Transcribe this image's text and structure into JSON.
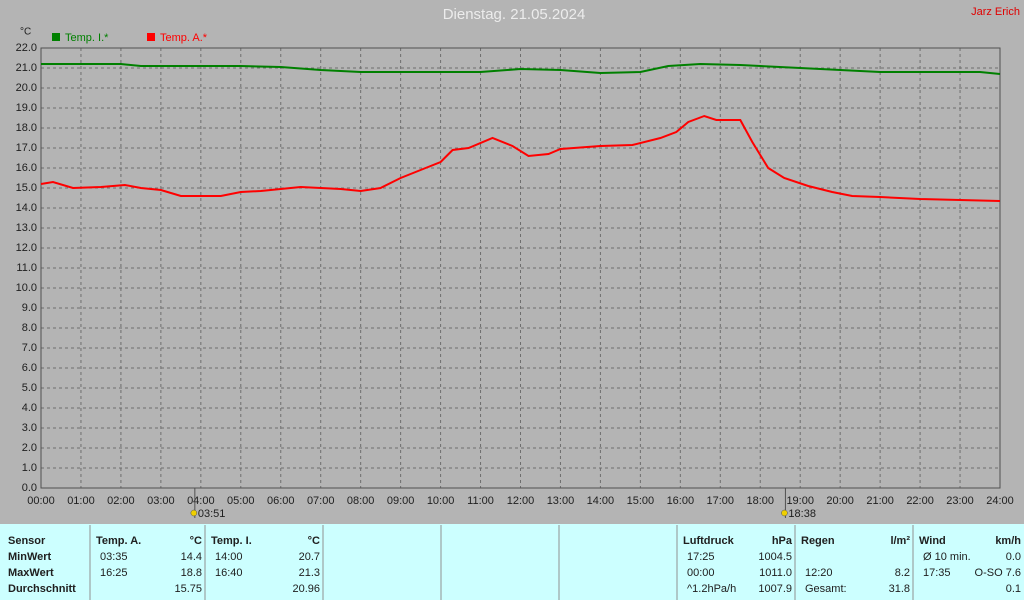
{
  "chart_data": {
    "type": "line",
    "title": "Dienstag. 21.05.2024",
    "author": "Jarz Erich",
    "y_unit": "°C",
    "grid": true,
    "xlim": [
      0,
      24
    ],
    "xticks": [
      {
        "value": 0,
        "label": "00:00"
      },
      {
        "value": 1,
        "label": "01:00"
      },
      {
        "value": 2,
        "label": "02:00"
      },
      {
        "value": 3,
        "label": "03:00"
      },
      {
        "value": 4,
        "label": "04:00"
      },
      {
        "value": 5,
        "label": "05:00"
      },
      {
        "value": 6,
        "label": "06:00"
      },
      {
        "value": 7,
        "label": "07:00"
      },
      {
        "value": 8,
        "label": "08:00"
      },
      {
        "value": 9,
        "label": "09:00"
      },
      {
        "value": 10,
        "label": "10:00"
      },
      {
        "value": 11,
        "label": "11:00"
      },
      {
        "value": 12,
        "label": "12:00"
      },
      {
        "value": 13,
        "label": "13:00"
      },
      {
        "value": 14,
        "label": "14:00"
      },
      {
        "value": 15,
        "label": "15:00"
      },
      {
        "value": 16,
        "label": "16:00"
      },
      {
        "value": 17,
        "label": "17:00"
      },
      {
        "value": 18,
        "label": "18:00"
      },
      {
        "value": 19,
        "label": "19:00"
      },
      {
        "value": 20,
        "label": "20:00"
      },
      {
        "value": 21,
        "label": "21:00"
      },
      {
        "value": 22,
        "label": "22:00"
      },
      {
        "value": 23,
        "label": "23:00"
      },
      {
        "value": 24,
        "label": "24:00"
      }
    ],
    "ylim": [
      0,
      22
    ],
    "yticks": [
      {
        "value": 0,
        "label": "0.0"
      },
      {
        "value": 1,
        "label": "1.0"
      },
      {
        "value": 2,
        "label": "2.0"
      },
      {
        "value": 3,
        "label": "3.0"
      },
      {
        "value": 4,
        "label": "4.0"
      },
      {
        "value": 5,
        "label": "5.0"
      },
      {
        "value": 6,
        "label": "6.0"
      },
      {
        "value": 7,
        "label": "7.0"
      },
      {
        "value": 8,
        "label": "8.0"
      },
      {
        "value": 9,
        "label": "9.0"
      },
      {
        "value": 10,
        "label": "10.0"
      },
      {
        "value": 11,
        "label": "11.0"
      },
      {
        "value": 12,
        "label": "12.0"
      },
      {
        "value": 13,
        "label": "13.0"
      },
      {
        "value": 14,
        "label": "14.0"
      },
      {
        "value": 15,
        "label": "15.0"
      },
      {
        "value": 16,
        "label": "16.0"
      },
      {
        "value": 17,
        "label": "17.0"
      },
      {
        "value": 18,
        "label": "18.0"
      },
      {
        "value": 19,
        "label": "19.0"
      },
      {
        "value": 20,
        "label": "20.0"
      },
      {
        "value": 21,
        "label": "21.0"
      },
      {
        "value": 22,
        "label": "22.0"
      }
    ],
    "series": [
      {
        "name": "Temp. I.*",
        "color": "#008000",
        "x": [
          0,
          2,
          2.5,
          5,
          6,
          7,
          8,
          11,
          12,
          13,
          14,
          15,
          15.7,
          16.5,
          17.5,
          19,
          20,
          21,
          23.5,
          24
        ],
        "values": [
          21.2,
          21.2,
          21.1,
          21.1,
          21.05,
          20.9,
          20.8,
          20.8,
          20.95,
          20.9,
          20.75,
          20.8,
          21.1,
          21.2,
          21.15,
          21.0,
          20.9,
          20.8,
          20.8,
          20.7
        ]
      },
      {
        "name": "Temp. A.*",
        "color": "#ff0000",
        "x": [
          0,
          0.3,
          0.8,
          1.5,
          2.1,
          2.5,
          3,
          3.5,
          4.5,
          5,
          5.5,
          6.5,
          7.5,
          8,
          8.5,
          9,
          9.5,
          10,
          10.3,
          10.7,
          11.3,
          11.8,
          12.2,
          12.7,
          13,
          14,
          14.8,
          15.5,
          15.9,
          16.2,
          16.6,
          16.9,
          17.5,
          17.8,
          18.2,
          18.6,
          19.2,
          19.8,
          20.3,
          21,
          22,
          23,
          24
        ],
        "values": [
          15.2,
          15.3,
          15.0,
          15.05,
          15.15,
          15.0,
          14.9,
          14.6,
          14.6,
          14.8,
          14.85,
          15.05,
          14.95,
          14.85,
          15.0,
          15.5,
          15.9,
          16.3,
          16.9,
          17.0,
          17.5,
          17.1,
          16.6,
          16.7,
          16.95,
          17.1,
          17.15,
          17.5,
          17.8,
          18.3,
          18.6,
          18.4,
          18.4,
          17.3,
          16.0,
          15.5,
          15.1,
          14.8,
          14.6,
          14.55,
          14.45,
          14.4,
          14.35
        ]
      }
    ],
    "annotations": [
      {
        "x": 3.85,
        "label": "03:51"
      },
      {
        "x": 18.63,
        "label": "18:38"
      }
    ]
  },
  "table": {
    "sensor": {
      "header": "Sensor",
      "rows": [
        "MinWert",
        "MaxWert",
        "Durchschnitt"
      ]
    },
    "groups": [
      {
        "title": "Temp. A.",
        "unit": "°C",
        "rows": [
          [
            "03:35",
            "14.4"
          ],
          [
            "16:25",
            "18.8"
          ],
          [
            null,
            "15.75"
          ]
        ]
      },
      {
        "title": "Temp. I.",
        "unit": "°C",
        "rows": [
          [
            "14:00",
            "20.7"
          ],
          [
            "16:40",
            "21.3"
          ],
          [
            null,
            "20.96"
          ]
        ]
      },
      {
        "title": "Luftdruck",
        "unit": "hPa",
        "rows": [
          [
            "17:25",
            "1004.5"
          ],
          [
            "00:00",
            "1011.0"
          ],
          [
            "^1.2hPa/h",
            "1007.9"
          ]
        ]
      },
      {
        "title": "Regen",
        "unit": "l/m²",
        "rows": [
          [
            null,
            null
          ],
          [
            "12:20",
            "8.2"
          ],
          [
            "Gesamt:",
            "31.8"
          ]
        ]
      },
      {
        "title": "Wind",
        "unit": "km/h",
        "rows": [
          [
            "Ø 10 min.",
            "0.0"
          ],
          [
            "17:35",
            "O-SO 7.6"
          ],
          [
            null,
            "0.1"
          ]
        ]
      }
    ]
  }
}
